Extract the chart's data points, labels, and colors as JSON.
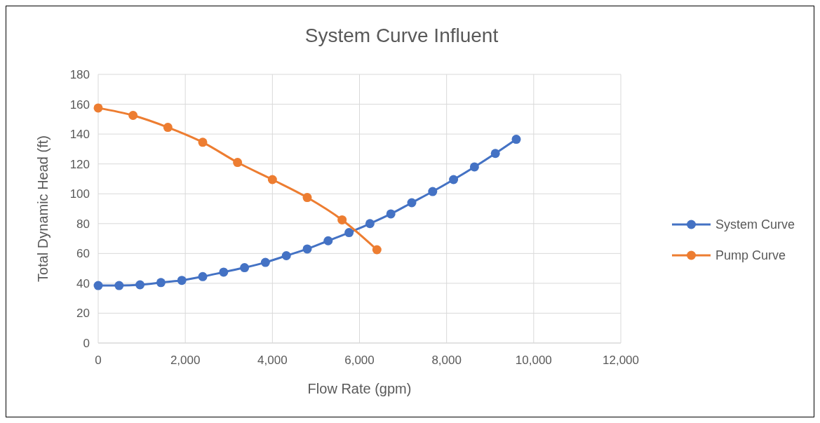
{
  "chart_data": {
    "type": "line",
    "title": "System Curve Influent",
    "xlabel": "Flow Rate (gpm)",
    "ylabel": "Total Dynamic Head (ft)",
    "xlim": [
      0,
      12000
    ],
    "xticks": [
      {
        "value": 0,
        "label": "0"
      },
      {
        "value": 2000,
        "label": "2,000"
      },
      {
        "value": 4000,
        "label": "4,000"
      },
      {
        "value": 6000,
        "label": "6,000"
      },
      {
        "value": 8000,
        "label": "8,000"
      },
      {
        "value": 10000,
        "label": "10,000"
      },
      {
        "value": 12000,
        "label": "12,000"
      }
    ],
    "ylim": [
      0,
      180
    ],
    "yticks": [
      0,
      20,
      40,
      60,
      80,
      100,
      120,
      140,
      160,
      180
    ],
    "grid": true,
    "legend": "right",
    "marker": "circle",
    "line_style": "solid",
    "series": [
      {
        "name": "System Curve",
        "color": "#4472c4",
        "x": [
          0,
          480,
          960,
          1440,
          1920,
          2400,
          2880,
          3360,
          3840,
          4320,
          4800,
          5280,
          5760,
          6240,
          6720,
          7200,
          7680,
          8160,
          8640,
          9120,
          9600
        ],
        "values": [
          38.5,
          38.5,
          39,
          40.5,
          42,
          44.5,
          47.5,
          50.5,
          54,
          58.5,
          63,
          68.5,
          74,
          80,
          86.5,
          94,
          101.5,
          109.5,
          118,
          127,
          136.5
        ]
      },
      {
        "name": "Pump Curve",
        "color": "#ed7d31",
        "x": [
          0,
          800,
          1600,
          2400,
          3200,
          4000,
          4800,
          5600,
          6400
        ],
        "values": [
          157.5,
          152.5,
          144.5,
          134.5,
          121,
          109.5,
          97.5,
          82.5,
          62.5
        ]
      }
    ]
  }
}
